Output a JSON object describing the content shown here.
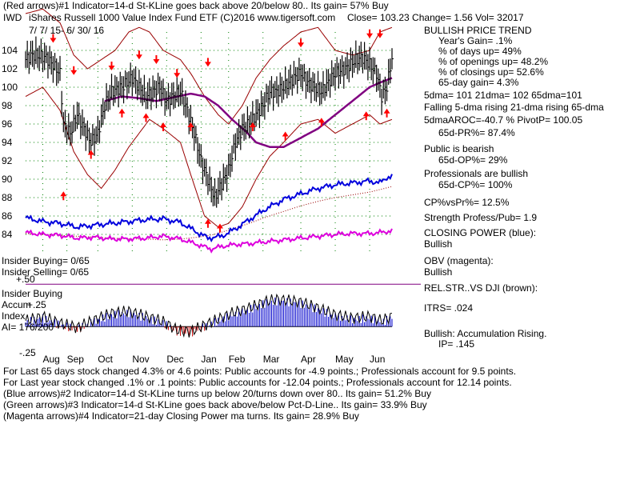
{
  "header": {
    "line1": "(Red arrows)#1 Indicator=14-d St-KLine goes back above 20/below 80.. Its gain= 57% Buy",
    "ticker": "IWD",
    "name": "iShares Russell 1000 Value Index Fund ETF  (C)2016 www.tigersoft.com",
    "quote": "Close=  103.23  Change= 1.56 Vol=  32017",
    "date_range": "7/ 7/ 15-  6/ 30/ 16"
  },
  "right_panel": {
    "bullish_trend": "BULLISH PRICE TREND",
    "years_gain": "Year's Gain= .1%",
    "pct_days_up": "% of days up= 49%",
    "pct_openings_up": "% of openings up= 48.2%",
    "pct_closings_up": "% of closings up= 52.6%",
    "gain_65": "65-day gain= 4.3%",
    "dma": "5dma= 101  21dma= 102  65dma=101",
    "dma_trend": "Falling 5-dma rising 21-dma rising 65-dma",
    "aroc": "5dmaAROC=-40.7 %  PivotP= 100.05",
    "pr": "65d-PR%= 87.4%",
    "public": "Public is bearish",
    "op": "65d-OP%= 29%",
    "professionals": "Professionals are bullish",
    "cp": "65d-CP%= 100%",
    "cpvspr": "CP%vsPr%=  12.5%",
    "strength": "Strength Profess/Pub= 1.9",
    "closing_power": "CLOSING POWER (blue):",
    "cp_bullish": "Bullish",
    "obv": "OBV (magenta):",
    "obv_bullish": "Bullish",
    "relstr": "REL.STR..VS DJI (brown):",
    "itrs": "ITRS= .024",
    "accum": "Bullish: Accumulation Rising.",
    "ip": "IP=  .145"
  },
  "left_labels": {
    "insider_buying": "Insider Buying= 0/65",
    "insider_selling": "Insider Selling= 0/65",
    "plus50": "+.50",
    "insider_buying2": "Insider Buying",
    "accum": "Accum",
    "plus25": "+.25",
    "index": "Index",
    "ai": "AI= 176/200",
    "minus25": "-.25"
  },
  "footer": {
    "line1": "For Last 65 days stock changed  4.3% or  4.6 points:  Public accounts for -4.9 points.;  Professionals account for  9.5 points.",
    "line2": "For Last year stock changed  .1% or  .1  points:  Public accounts for -12.04 points.;  Professionals account for  12.14 points.",
    "line3": "(Blue arrows)#2 Indicator=14-d St-KLine turns up below 20/turns down over 80.. Its gain= 51.2% Buy",
    "line4": "(Green arrows)#3 Indicator=14-d St-KLine goes back above/below Pct-D-Line.. Its gain= 33.9% Buy",
    "line5": "(Magenta arrows)#4 Indicator=21-day Closing Power ma turns. Its gain= 28.9% Buy"
  },
  "colors": {
    "price": "#000000",
    "band": "#990000",
    "ma65": "#800080",
    "closing_power": "#0000dd",
    "obv": "#dd00dd",
    "rel_str": "#990000",
    "arrow": "#ff0000",
    "grid": "#008000",
    "ai_pos": "#0000cc",
    "ai_neg": "#cc0000",
    "zero_line": "#800080"
  },
  "chart_data": {
    "type": "line",
    "title": "IWD iShares Russell 1000 Value Index Fund ETF",
    "ylim": [
      82,
      106
    ],
    "yticks": [
      84,
      86,
      88,
      90,
      92,
      94,
      96,
      98,
      100,
      102,
      104
    ],
    "months": [
      "Aug",
      "Sep",
      "Oct",
      "Nov",
      "Dec",
      "Jan",
      "Feb",
      "Mar",
      "Apr",
      "May",
      "Jun"
    ],
    "month_index": [
      10,
      24,
      42,
      62,
      82,
      102,
      118,
      138,
      160,
      180,
      200
    ],
    "n": 214,
    "price_knots": [
      [
        0,
        103
      ],
      [
        4,
        103.5
      ],
      [
        8,
        103.4
      ],
      [
        12,
        103.2
      ],
      [
        16,
        102.4
      ],
      [
        20,
        101.5
      ],
      [
        22,
        96
      ],
      [
        26,
        95
      ],
      [
        30,
        97
      ],
      [
        34,
        95.5
      ],
      [
        38,
        94
      ],
      [
        42,
        95
      ],
      [
        46,
        98
      ],
      [
        50,
        99.5
      ],
      [
        56,
        100
      ],
      [
        62,
        101
      ],
      [
        66,
        100
      ],
      [
        70,
        99
      ],
      [
        74,
        99.5
      ],
      [
        78,
        100
      ],
      [
        82,
        98.5
      ],
      [
        86,
        99
      ],
      [
        90,
        99.5
      ],
      [
        94,
        97.5
      ],
      [
        98,
        95
      ],
      [
        102,
        92
      ],
      [
        106,
        90
      ],
      [
        110,
        88
      ],
      [
        114,
        89.5
      ],
      [
        118,
        91
      ],
      [
        122,
        94
      ],
      [
        126,
        95.5
      ],
      [
        130,
        96
      ],
      [
        134,
        97
      ],
      [
        138,
        98
      ],
      [
        142,
        99.5
      ],
      [
        146,
        99.5
      ],
      [
        150,
        100
      ],
      [
        156,
        101
      ],
      [
        160,
        101.5
      ],
      [
        164,
        100.5
      ],
      [
        168,
        100
      ],
      [
        172,
        99.5
      ],
      [
        176,
        100.5
      ],
      [
        180,
        101.5
      ],
      [
        186,
        102
      ],
      [
        192,
        103
      ],
      [
        196,
        103.2
      ],
      [
        200,
        102.5
      ],
      [
        204,
        101.5
      ],
      [
        207,
        99
      ],
      [
        210,
        100
      ],
      [
        213,
        103.2
      ]
    ],
    "band_upper_knots": [
      [
        0,
        108
      ],
      [
        10,
        108.5
      ],
      [
        20,
        107
      ],
      [
        28,
        103.5
      ],
      [
        36,
        102
      ],
      [
        44,
        103
      ],
      [
        52,
        104
      ],
      [
        60,
        106
      ],
      [
        66,
        106.5
      ],
      [
        72,
        106
      ],
      [
        80,
        104
      ],
      [
        90,
        103
      ],
      [
        96,
        101.5
      ],
      [
        104,
        99
      ],
      [
        112,
        97
      ],
      [
        118,
        96
      ],
      [
        126,
        98
      ],
      [
        134,
        101
      ],
      [
        142,
        103
      ],
      [
        150,
        104.5
      ],
      [
        160,
        106
      ],
      [
        170,
        106.5
      ],
      [
        180,
        104
      ],
      [
        190,
        103.5
      ],
      [
        200,
        104
      ],
      [
        206,
        106
      ],
      [
        213,
        106.5
      ]
    ],
    "band_lower_knots": [
      [
        0,
        99
      ],
      [
        10,
        100
      ],
      [
        20,
        97.5
      ],
      [
        28,
        93
      ],
      [
        36,
        90.5
      ],
      [
        44,
        89
      ],
      [
        52,
        91
      ],
      [
        60,
        93.5
      ],
      [
        66,
        95
      ],
      [
        72,
        96.5
      ],
      [
        80,
        95.5
      ],
      [
        90,
        94
      ],
      [
        96,
        90.5
      ],
      [
        104,
        86
      ],
      [
        112,
        84.8
      ],
      [
        118,
        85.2
      ],
      [
        126,
        87
      ],
      [
        134,
        90
      ],
      [
        142,
        92.5
      ],
      [
        150,
        94
      ],
      [
        160,
        96
      ],
      [
        170,
        96.5
      ],
      [
        180,
        95
      ],
      [
        190,
        96
      ],
      [
        200,
        97
      ],
      [
        206,
        96
      ],
      [
        213,
        96.5
      ]
    ],
    "ma65_knots": [
      [
        46,
        98.5
      ],
      [
        56,
        99
      ],
      [
        66,
        98.8
      ],
      [
        76,
        98.5
      ],
      [
        86,
        98.9
      ],
      [
        96,
        99.3
      ],
      [
        104,
        99
      ],
      [
        112,
        98
      ],
      [
        120,
        96.5
      ],
      [
        128,
        95.2
      ],
      [
        134,
        94
      ],
      [
        142,
        93.5
      ],
      [
        150,
        93.5
      ],
      [
        160,
        94.5
      ],
      [
        170,
        95.5
      ],
      [
        180,
        97
      ],
      [
        190,
        98.5
      ],
      [
        200,
        100
      ],
      [
        206,
        100.5
      ],
      [
        213,
        101
      ]
    ],
    "closing_power_knots": [
      [
        0,
        85.8
      ],
      [
        10,
        85.4
      ],
      [
        20,
        85.2
      ],
      [
        30,
        84.8
      ],
      [
        40,
        85
      ],
      [
        50,
        85.2
      ],
      [
        60,
        85.4
      ],
      [
        70,
        85.6
      ],
      [
        80,
        85.7
      ],
      [
        90,
        85.3
      ],
      [
        100,
        84.2
      ],
      [
        106,
        83.6
      ],
      [
        114,
        83.8
      ],
      [
        122,
        84.6
      ],
      [
        130,
        85.6
      ],
      [
        140,
        86.8
      ],
      [
        150,
        87.8
      ],
      [
        160,
        88.4
      ],
      [
        170,
        89
      ],
      [
        180,
        89.4
      ],
      [
        190,
        89.6
      ],
      [
        200,
        89.8
      ],
      [
        206,
        89.6
      ],
      [
        210,
        90.2
      ],
      [
        213,
        90.3
      ]
    ],
    "obv_knots": [
      [
        0,
        84.2
      ],
      [
        10,
        84
      ],
      [
        20,
        83.9
      ],
      [
        30,
        83.6
      ],
      [
        40,
        83.7
      ],
      [
        50,
        83.5
      ],
      [
        60,
        83.5
      ],
      [
        70,
        83.6
      ],
      [
        80,
        83.8
      ],
      [
        90,
        83.5
      ],
      [
        100,
        82.9
      ],
      [
        108,
        82.4
      ],
      [
        114,
        82.7
      ],
      [
        122,
        82.9
      ],
      [
        130,
        83
      ],
      [
        140,
        83.2
      ],
      [
        150,
        83.4
      ],
      [
        160,
        83.6
      ],
      [
        170,
        83.8
      ],
      [
        180,
        84
      ],
      [
        190,
        84.1
      ],
      [
        200,
        84.1
      ],
      [
        206,
        84.2
      ],
      [
        213,
        84.4
      ]
    ],
    "relstr_knots": [
      [
        0,
        84.1
      ],
      [
        10,
        84
      ],
      [
        20,
        83.9
      ],
      [
        30,
        83.8
      ],
      [
        40,
        83.7
      ],
      [
        50,
        83.6
      ],
      [
        60,
        83.5
      ],
      [
        70,
        83.5
      ],
      [
        80,
        83.4
      ],
      [
        90,
        83.5
      ],
      [
        100,
        83.7
      ],
      [
        110,
        84
      ],
      [
        120,
        84.6
      ],
      [
        130,
        85.2
      ],
      [
        140,
        85.9
      ],
      [
        150,
        86.5
      ],
      [
        160,
        87.1
      ],
      [
        170,
        87.6
      ],
      [
        180,
        88
      ],
      [
        190,
        88.3
      ],
      [
        200,
        88.6
      ],
      [
        213,
        89.2
      ]
    ],
    "ai_knots": [
      [
        0,
        0.05
      ],
      [
        10,
        0.1
      ],
      [
        20,
        0.02
      ],
      [
        30,
        -0.03
      ],
      [
        40,
        0.06
      ],
      [
        50,
        0.14
      ],
      [
        60,
        0.16
      ],
      [
        70,
        0.1
      ],
      [
        80,
        0.04
      ],
      [
        88,
        -0.06
      ],
      [
        96,
        -0.08
      ],
      [
        102,
        -0.02
      ],
      [
        110,
        0.05
      ],
      [
        120,
        0.14
      ],
      [
        130,
        0.2
      ],
      [
        140,
        0.28
      ],
      [
        146,
        0.3
      ],
      [
        152,
        0.29
      ],
      [
        160,
        0.27
      ],
      [
        170,
        0.2
      ],
      [
        180,
        0.12
      ],
      [
        190,
        0.08
      ],
      [
        200,
        0.1
      ],
      [
        207,
        0.05
      ],
      [
        213,
        0.1
      ]
    ],
    "ai_ylim": [
      -0.3,
      0.55
    ],
    "red_up_arrows": [
      [
        22,
        88.5
      ],
      [
        38,
        93
      ],
      [
        56,
        97.5
      ],
      [
        70,
        97
      ],
      [
        80,
        96
      ],
      [
        96,
        96
      ],
      [
        106,
        85.5
      ],
      [
        113,
        85
      ],
      [
        132,
        96
      ],
      [
        151,
        95
      ],
      [
        172,
        96.5
      ],
      [
        198,
        97.2
      ],
      [
        210,
        97.5
      ]
    ],
    "red_down_arrows": [
      [
        16,
        105
      ],
      [
        28,
        101.5
      ],
      [
        50,
        102
      ],
      [
        66,
        103.2
      ],
      [
        76,
        102.7
      ],
      [
        88,
        101.2
      ],
      [
        106,
        102.4
      ],
      [
        160,
        104.5
      ],
      [
        200,
        105.5
      ],
      [
        206,
        105.5
      ]
    ]
  }
}
